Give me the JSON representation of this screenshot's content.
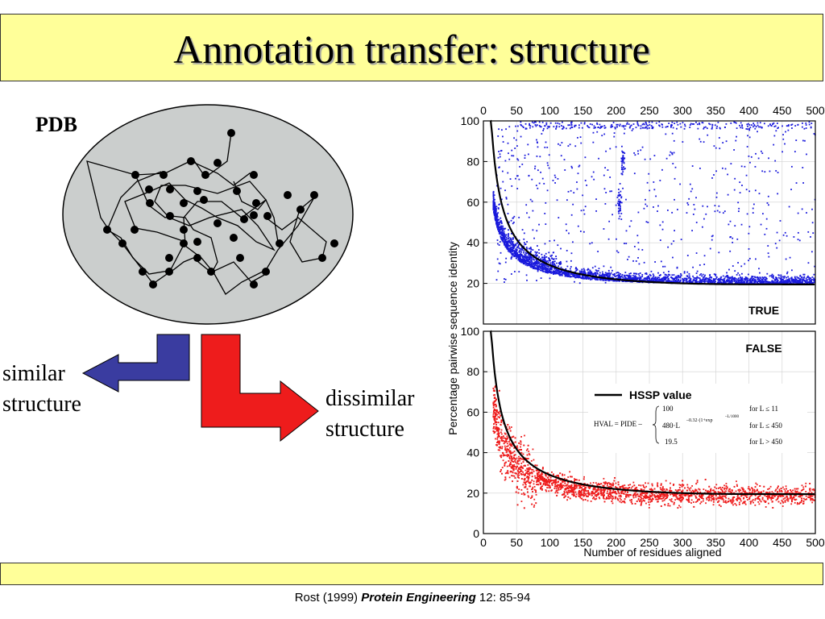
{
  "slide": {
    "title": "Annotation transfer: structure",
    "pdb_label": "PDB",
    "similar_label_line1": "similar",
    "similar_label_line2": "structure",
    "dissimilar_label_line1": "dissimilar",
    "dissimilar_label_line2": "structure",
    "citation": {
      "author_year": "Rost (1999) ",
      "journal": "Protein Engineering",
      "volume_pages": " 12: 85-94"
    },
    "colors": {
      "title_background": "#ffff99",
      "similar_arrow": "#3a3ca0",
      "dissimilar_arrow": "#ee1c1c",
      "blob_fill": "#cbcecd"
    },
    "icons": [
      "left-arrow-icon",
      "right-arrow-icon"
    ]
  },
  "chart_data": {
    "type": "scatter",
    "xlabel": "Number of residues aligned",
    "ylabel": "Percentage pairwise sequence identity",
    "xlim": [
      0,
      500
    ],
    "ylim": [
      0,
      100
    ],
    "xticks": [
      "0",
      "50",
      "100",
      "150",
      "200",
      "250",
      "300",
      "350",
      "400",
      "450",
      "500"
    ],
    "yticks": [
      "0",
      "20",
      "40",
      "60",
      "80",
      "100"
    ],
    "grid": true,
    "panels": [
      {
        "name": "TRUE",
        "color": "#1a1adc",
        "description_points": "dense band near 15-30% identity across all lengths, scattered points up to 100%, concentrated along 100% line"
      },
      {
        "name": "FALSE",
        "color": "#ee1c1c",
        "description_points": "dense band 10-35% identity across all lengths, high values up to 75% only for short alignments"
      }
    ],
    "curve": {
      "name": "HSSP value",
      "points": [
        [
          11,
          100
        ],
        [
          15,
          92
        ],
        [
          20,
          80
        ],
        [
          25,
          70
        ],
        [
          30,
          62
        ],
        [
          40,
          52
        ],
        [
          50,
          45
        ],
        [
          75,
          35
        ],
        [
          100,
          30
        ],
        [
          150,
          25
        ],
        [
          200,
          22.5
        ],
        [
          250,
          21
        ],
        [
          300,
          20.2
        ],
        [
          350,
          19.8
        ],
        [
          400,
          19.6
        ],
        [
          450,
          19.5
        ],
        [
          500,
          19.5
        ]
      ]
    },
    "legend": {
      "label": "HSSP value",
      "formula_lhs": "HVAL = PIDE –",
      "rows": [
        {
          "expr": "100",
          "cond": "for L ≤  11"
        },
        {
          "expr": "480·L",
          "exp": "–0.32·(1+exp",
          "exp2": "–L/1000",
          "cond": "for L ≤  450"
        },
        {
          "expr": "19.5",
          "cond": "for L >  450"
        }
      ]
    }
  }
}
